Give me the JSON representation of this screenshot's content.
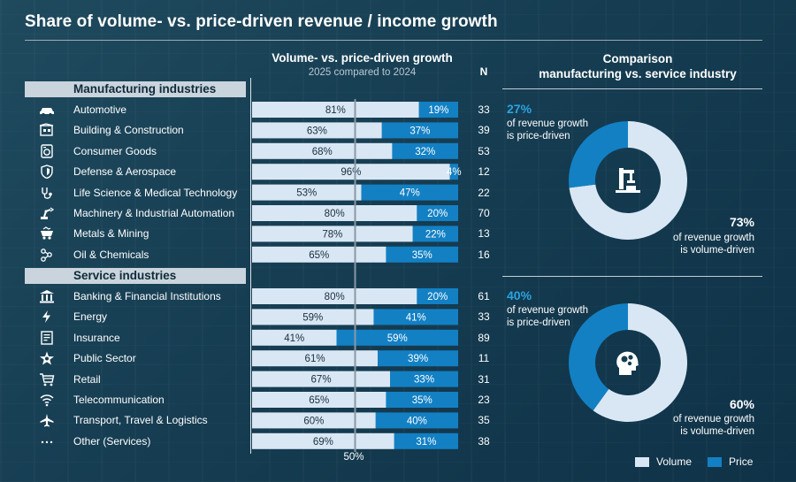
{
  "title": "Share of volume- vs. price-driven revenue / income growth",
  "colors": {
    "volume": "#d9e7f5",
    "price": "#1380c4",
    "priceText": "#2aa4e0",
    "panel": "#c9d4dc"
  },
  "header": {
    "chart_title": "Volume- vs. price-driven growth",
    "chart_subtitle": "2025 compared to 2024",
    "n_label": "N",
    "comparison_line1": "Comparison",
    "comparison_line2": "manufacturing vs. service industry"
  },
  "sections": {
    "manufacturing": "Manufacturing industries",
    "service": "Service industries"
  },
  "chart_data": {
    "type": "bar",
    "orientation": "horizontal-stacked-100",
    "title": "Volume- vs. price-driven growth",
    "subtitle": "2025 compared to 2024",
    "reference_line": {
      "value": 50,
      "label": "50%"
    },
    "groups": [
      {
        "name": "Manufacturing industries",
        "rows": [
          {
            "label": "Automotive",
            "icon": "car-icon",
            "volume": 81,
            "price": 19,
            "n": 33
          },
          {
            "label": "Building & Construction",
            "icon": "building-icon",
            "volume": 63,
            "price": 37,
            "n": 39
          },
          {
            "label": "Consumer Goods",
            "icon": "washing-machine-icon",
            "volume": 68,
            "price": 32,
            "n": 53
          },
          {
            "label": "Defense & Aerospace",
            "icon": "shield-icon",
            "volume": 96,
            "price": 4,
            "n": 12
          },
          {
            "label": "Life Science & Medical Technology",
            "icon": "stethoscope-icon",
            "volume": 53,
            "price": 47,
            "n": 22
          },
          {
            "label": "Machinery & Industrial Automation",
            "icon": "robot-arm-icon",
            "volume": 80,
            "price": 20,
            "n": 70
          },
          {
            "label": "Metals & Mining",
            "icon": "mine-cart-icon",
            "volume": 78,
            "price": 22,
            "n": 13
          },
          {
            "label": "Oil & Chemicals",
            "icon": "molecule-icon",
            "volume": 65,
            "price": 35,
            "n": 16
          }
        ]
      },
      {
        "name": "Service industries",
        "rows": [
          {
            "label": "Banking & Financial Institutions",
            "icon": "bank-icon",
            "volume": 80,
            "price": 20,
            "n": 61
          },
          {
            "label": "Energy",
            "icon": "lightning-icon",
            "volume": 59,
            "price": 41,
            "n": 33
          },
          {
            "label": "Insurance",
            "icon": "document-icon",
            "volume": 41,
            "price": 59,
            "n": 89
          },
          {
            "label": "Public Sector",
            "icon": "star-emblem-icon",
            "volume": 61,
            "price": 39,
            "n": 11
          },
          {
            "label": "Retail",
            "icon": "shopping-cart-icon",
            "volume": 67,
            "price": 33,
            "n": 31
          },
          {
            "label": "Telecommunication",
            "icon": "wifi-icon",
            "volume": 65,
            "price": 35,
            "n": 23
          },
          {
            "label": "Transport, Travel & Logistics",
            "icon": "airplane-icon",
            "volume": 60,
            "price": 40,
            "n": 35
          },
          {
            "label": "Other (Services)",
            "icon": "ellipsis-icon",
            "volume": 69,
            "price": 31,
            "n": 38
          }
        ]
      }
    ],
    "series": [
      {
        "name": "Volume"
      },
      {
        "name": "Price"
      }
    ],
    "comparison": [
      {
        "group": "Manufacturing industries",
        "type": "pie",
        "price": 27,
        "volume": 73,
        "price_label": "27%",
        "price_text_1": "of revenue growth",
        "price_text_2": "is price-driven",
        "volume_label": "73%",
        "volume_text_1": "of revenue growth",
        "volume_text_2": "is volume-driven",
        "center_icon": "machine-press-icon"
      },
      {
        "group": "Service industries",
        "type": "pie",
        "price": 40,
        "volume": 60,
        "price_label": "40%",
        "price_text_1": "of revenue growth",
        "price_text_2": "is price-driven",
        "volume_label": "60%",
        "volume_text_1": "of revenue growth",
        "volume_text_2": "is volume-driven",
        "center_icon": "head-gears-icon"
      }
    ],
    "legend": [
      {
        "name": "Volume"
      },
      {
        "name": "Price"
      }
    ]
  }
}
